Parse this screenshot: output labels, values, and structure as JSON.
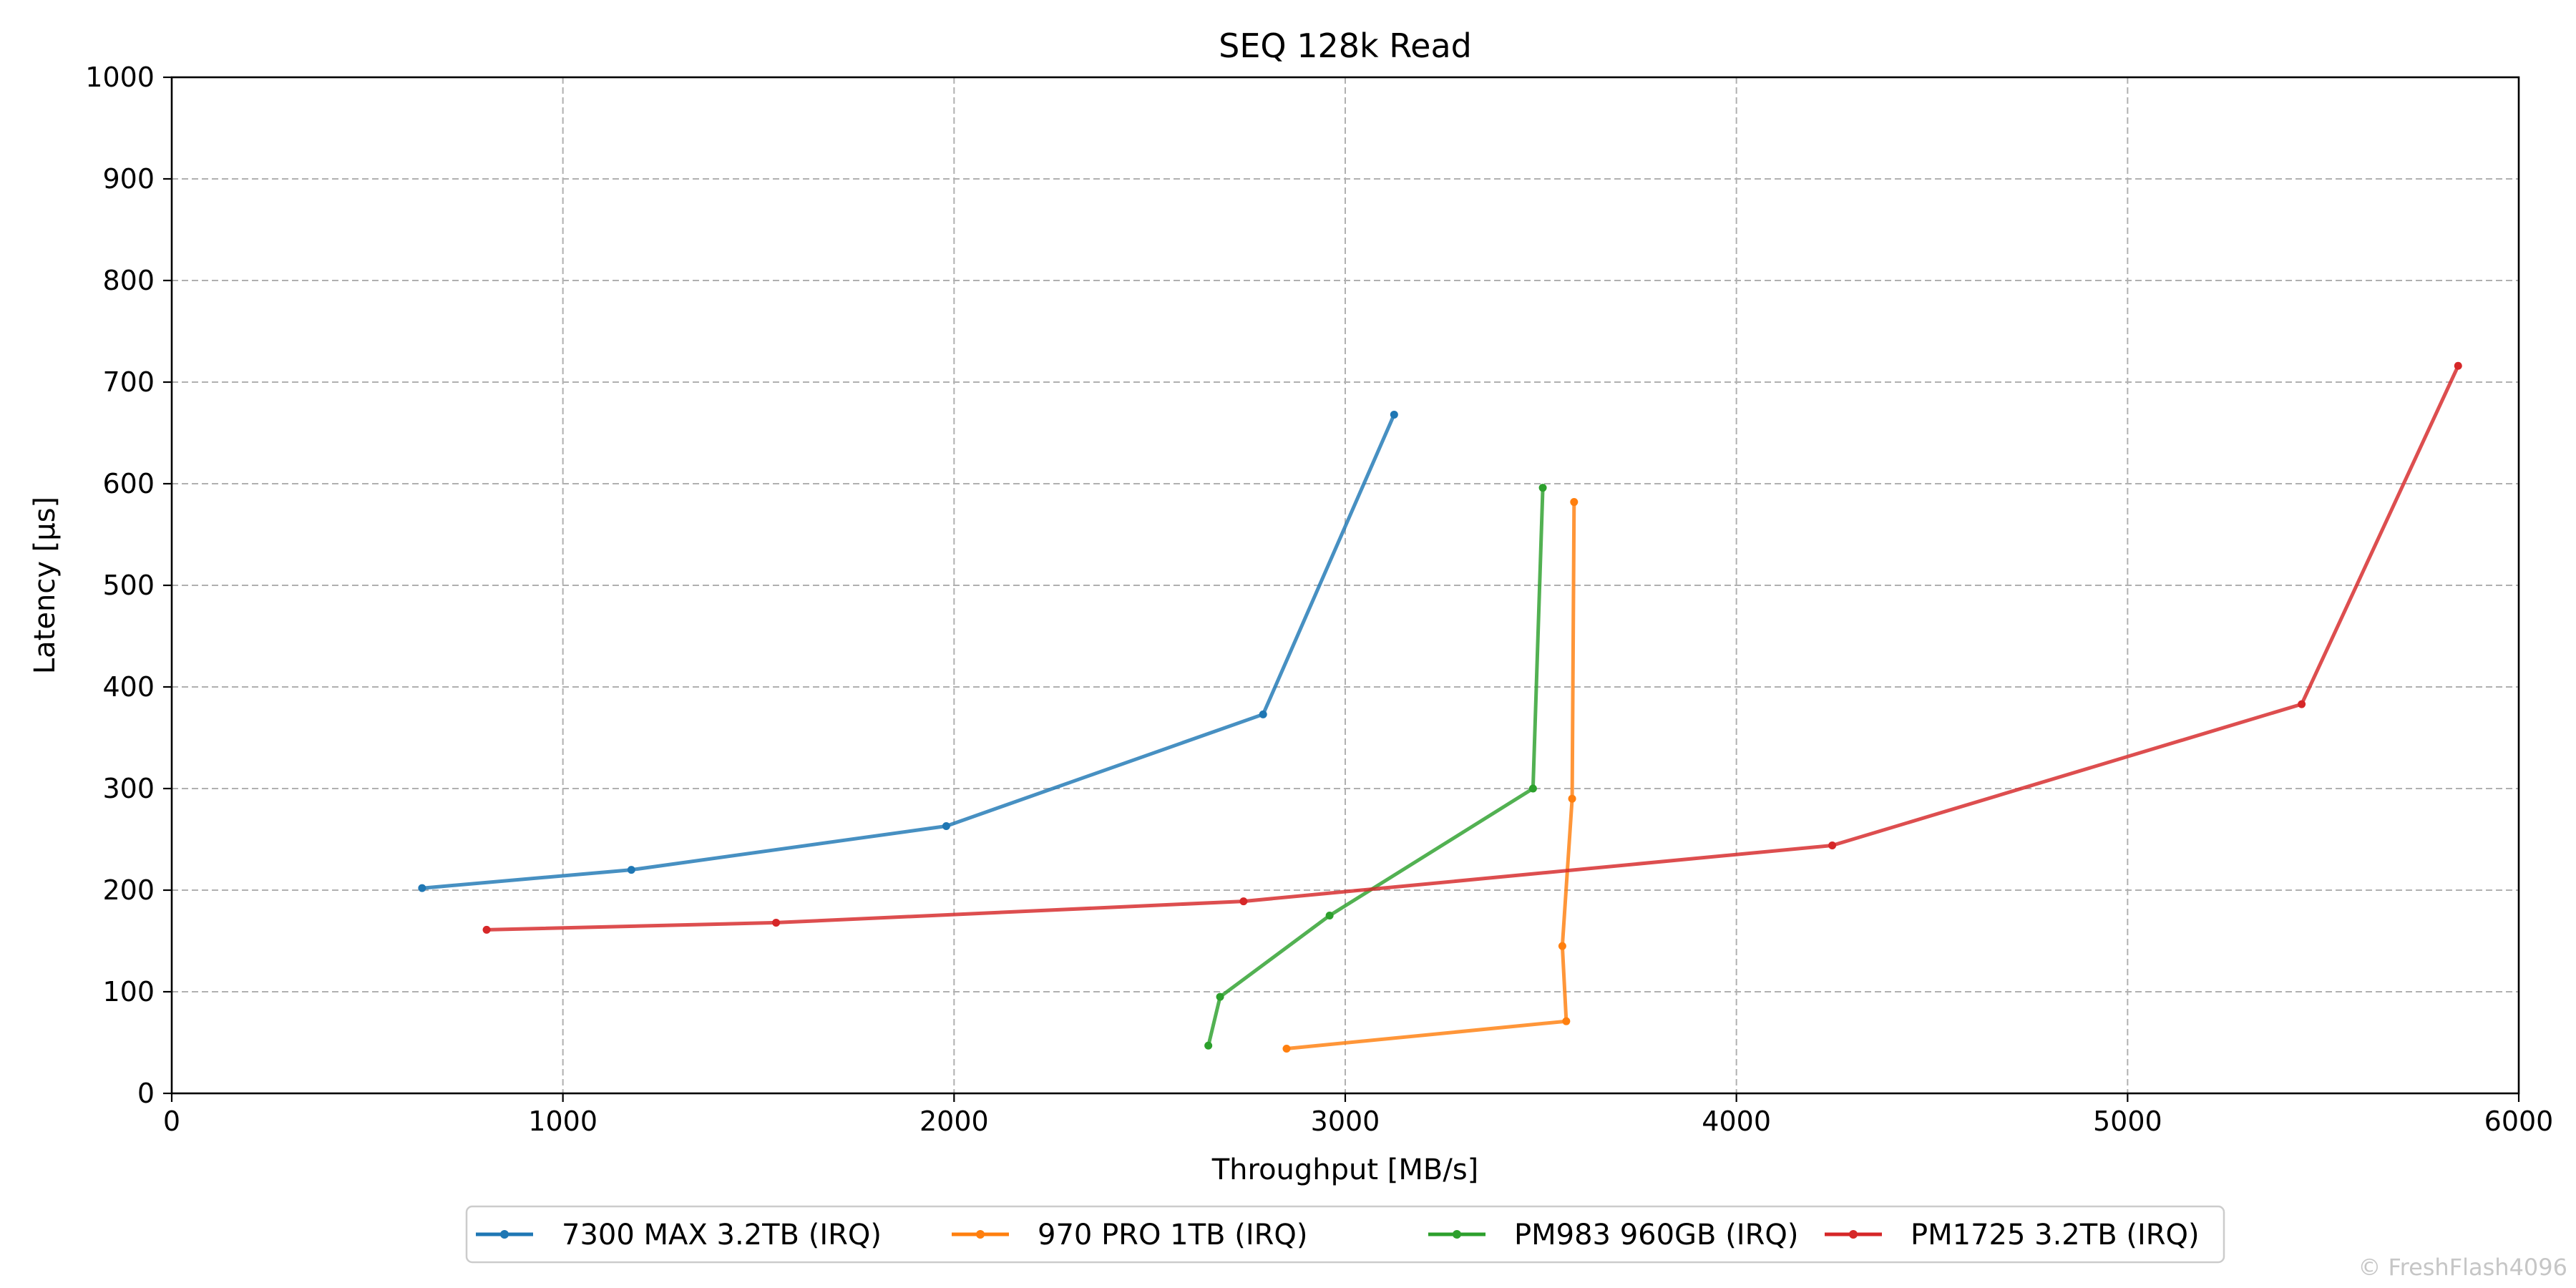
{
  "chart_data": {
    "type": "line",
    "title": "SEQ 128k Read",
    "xlabel": "Throughput [MB/s]",
    "ylabel": "Latency [µs]",
    "xlim": [
      0,
      6000
    ],
    "ylim": [
      0,
      1000
    ],
    "xticks": [
      0,
      1000,
      2000,
      3000,
      4000,
      5000,
      6000
    ],
    "yticks": [
      0,
      100,
      200,
      300,
      400,
      500,
      600,
      700,
      800,
      900,
      1000
    ],
    "grid": true,
    "legend_position": "bottom-center",
    "series": [
      {
        "name": "7300 MAX 3.2TB (IRQ)",
        "color": "#1f77b4",
        "points": [
          [
            640,
            202
          ],
          [
            1175,
            220
          ],
          [
            1980,
            263
          ],
          [
            2790,
            373
          ],
          [
            3125,
            668
          ]
        ]
      },
      {
        "name": "970 PRO 1TB (IRQ)",
        "color": "#ff7f0e",
        "points": [
          [
            2850,
            44
          ],
          [
            3565,
            71
          ],
          [
            3555,
            145
          ],
          [
            3580,
            290
          ],
          [
            3585,
            582
          ]
        ]
      },
      {
        "name": "PM983 960GB (IRQ)",
        "color": "#2ca02c",
        "points": [
          [
            2650,
            47
          ],
          [
            2680,
            95
          ],
          [
            2960,
            175
          ],
          [
            3480,
            300
          ],
          [
            3505,
            596
          ]
        ]
      },
      {
        "name": "PM1725 3.2TB (IRQ)",
        "color": "#d62728",
        "points": [
          [
            805,
            161
          ],
          [
            1545,
            168
          ],
          [
            2740,
            189
          ],
          [
            4245,
            244
          ],
          [
            5445,
            383
          ],
          [
            5845,
            716
          ]
        ]
      }
    ]
  },
  "watermark": "© FreshFlash4096"
}
